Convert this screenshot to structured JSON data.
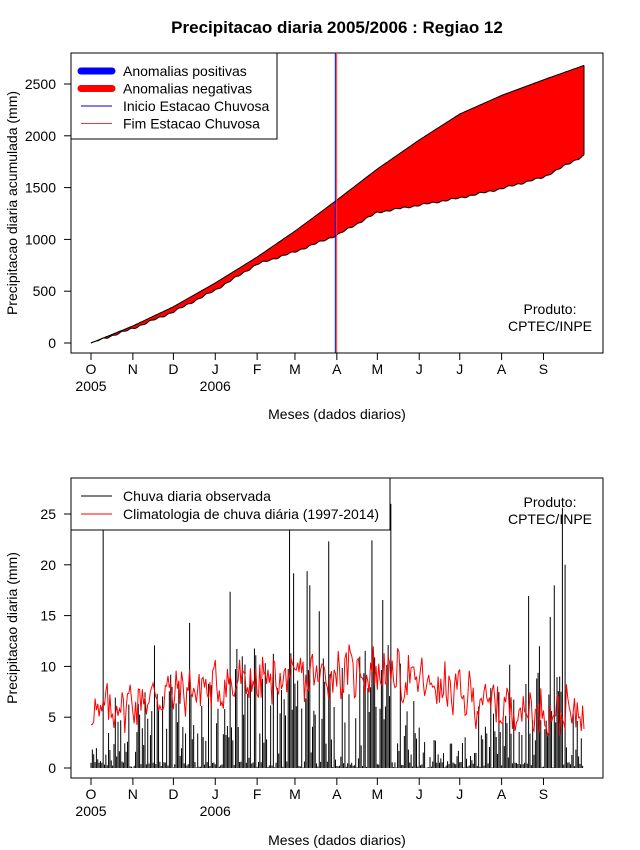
{
  "title": "Precipitacao diaria 2005/2006 : Regiao 12",
  "product_label": [
    "Produto:",
    "CPTEC/INPE"
  ],
  "colors": {
    "anomaly_positive": "#0000ff",
    "anomaly_negative": "#ff0000",
    "rain_start": "#0000cc",
    "rain_end": "#ff3333",
    "observed": "#000000",
    "climatology": "#ff0000"
  },
  "chart_data": [
    {
      "type": "area",
      "name": "accumulated",
      "xlabel": "Meses (dados diarios)",
      "ylabel": "Precipitacao diaria acumulada (mm)",
      "ylim": [
        0,
        2700
      ],
      "yticks": [
        0,
        500,
        1000,
        1500,
        2000,
        2500
      ],
      "month_ticks": [
        "O",
        "N",
        "D",
        "J",
        "F",
        "M",
        "A",
        "M",
        "J",
        "J",
        "A",
        "S"
      ],
      "year_labels": [
        "2005",
        "2006"
      ],
      "rainy_season_start_day": 182,
      "rainy_season_end_day": 183,
      "legend_position": "top-left",
      "legend": [
        {
          "label": "Anomalias positivas",
          "key": "anomaly_positive",
          "style": "thick"
        },
        {
          "label": "Anomalias negativas",
          "key": "anomaly_negative",
          "style": "thick"
        },
        {
          "label": "Inicio Estacao Chuvosa",
          "key": "rain_start",
          "style": "thin"
        },
        {
          "label": "Fim Estacao Chuvosa",
          "key": "rain_end",
          "style": "thin"
        }
      ],
      "series": [
        {
          "name": "climatology_cumulative",
          "x": [
            0,
            31,
            61,
            92,
            123,
            151,
            182,
            212,
            243,
            273,
            304,
            335,
            365
          ],
          "values": [
            0,
            165,
            350,
            580,
            830,
            1080,
            1380,
            1680,
            1960,
            2210,
            2390,
            2540,
            2680
          ]
        },
        {
          "name": "observed_cumulative",
          "x": [
            0,
            31,
            61,
            92,
            123,
            151,
            182,
            212,
            243,
            273,
            304,
            335,
            365
          ],
          "values": [
            0,
            140,
            300,
            510,
            760,
            880,
            1040,
            1260,
            1330,
            1400,
            1490,
            1600,
            1810
          ]
        }
      ]
    },
    {
      "type": "line",
      "name": "daily",
      "xlabel": "Meses (dados diarios)",
      "ylabel": "Precipitacao diaria (mm)",
      "ylim": [
        0,
        28
      ],
      "yticks": [
        0,
        5,
        10,
        15,
        20,
        25
      ],
      "month_ticks": [
        "O",
        "N",
        "D",
        "J",
        "F",
        "M",
        "A",
        "M",
        "J",
        "J",
        "A",
        "S"
      ],
      "year_labels": [
        "2005",
        "2006"
      ],
      "legend_position": "top-left",
      "legend": [
        {
          "label": "Chuva diaria observada",
          "key": "observed",
          "style": "thin"
        },
        {
          "label": "Climatologia de chuva diária (1997-2014)",
          "key": "climatology",
          "style": "thin"
        }
      ],
      "series": [
        {
          "name": "observed_daily_envelope",
          "x": [
            0,
            31,
            61,
            92,
            123,
            151,
            182,
            212,
            243,
            273,
            304,
            335,
            365
          ],
          "values": [
            3,
            13,
            17,
            15,
            23,
            22,
            19,
            23,
            6,
            5,
            9,
            24,
            10
          ]
        },
        {
          "name": "climatology_daily",
          "x": [
            0,
            31,
            61,
            92,
            123,
            151,
            182,
            212,
            243,
            273,
            304,
            335,
            365
          ],
          "values": [
            5.2,
            6.5,
            7.5,
            8.0,
            8.5,
            8.8,
            9.3,
            9.5,
            8.5,
            7.2,
            6.0,
            5.5,
            5.3
          ]
        }
      ]
    }
  ]
}
